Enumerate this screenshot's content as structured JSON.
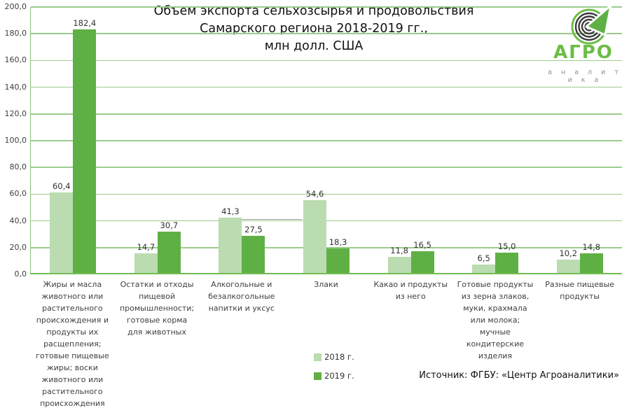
{
  "title": "Объем экспорта сельхозсырья и продовольствия\nСамарского региона 2018-2019 гг.,\nмлн долл. США",
  "source": "Источник: ФГБУ: «Центр Агроаналитики»",
  "logo": {
    "word": "АГРО",
    "subtitle": "а н а л и т и к а",
    "green": "#6bbd45",
    "dark": "#3a3a3a"
  },
  "legend": {
    "items": [
      {
        "label": "2018 г.",
        "color": "#badcb0"
      },
      {
        "label": "2019 г.",
        "color": "#5fb044"
      }
    ]
  },
  "chart_data": {
    "type": "bar",
    "title": "Объем экспорта сельхозсырья и продовольствия Самарского региона 2018-2019 гг., млн долл. США",
    "categories": [
      "Жиры и масла животного или растительного происхождения и продукты их расщепления; готовые пищевые жиры; воски животного или растительного происхождения",
      "Остатки и отходы пищевой промышленности; готовые корма для животных",
      "Алкогольные и безалкогольные напитки и уксус",
      "Злаки",
      "Какао и продукты из него",
      "Готовые продукты из зерна злаков, муки, крахмала  или молока; мучные кондитерские изделия",
      "Разные пищевые продукты"
    ],
    "series": [
      {
        "name": "2018 г.",
        "color": "#badcb0",
        "values": [
          60.4,
          14.7,
          41.3,
          54.6,
          11.8,
          6.5,
          10.2
        ]
      },
      {
        "name": "2019 г.",
        "color": "#5fb044",
        "values": [
          182.4,
          30.7,
          27.5,
          18.3,
          16.5,
          15.0,
          14.8
        ]
      }
    ],
    "ylim": [
      0,
      200
    ],
    "ytick_step": 20,
    "grid": true,
    "gridline_color": "#9bcb8b",
    "axis_color": "#72bd55",
    "decimal_separator": ",",
    "ylabel": "млн долл. США",
    "legend_position": "bottom-center"
  }
}
